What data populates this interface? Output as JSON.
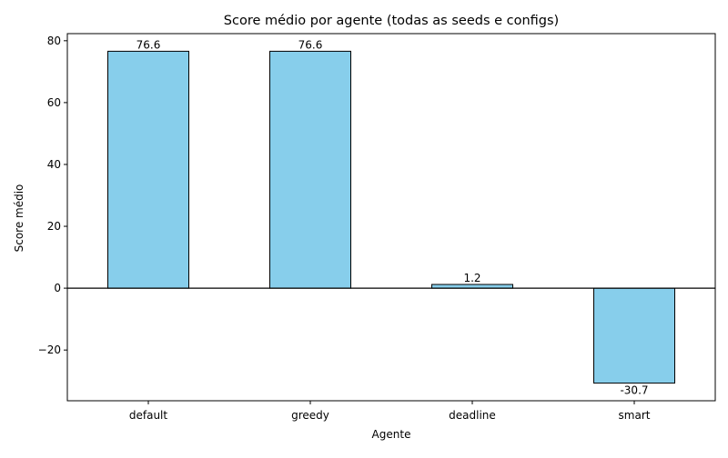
{
  "chart_data": {
    "type": "bar",
    "title": "Score médio por agente (todas as seeds e configs)",
    "xlabel": "Agente",
    "ylabel": "Score médio",
    "categories": [
      "default",
      "greedy",
      "deadline",
      "smart"
    ],
    "values": [
      76.6,
      76.6,
      1.2,
      -30.7
    ],
    "data_labels": [
      "76.6",
      "76.6",
      "1.2",
      "-30.7"
    ],
    "ylim": [
      -36.4,
      82.3
    ],
    "yticks": [
      -20,
      0,
      20,
      40,
      60,
      80
    ],
    "ytick_labels": [
      "−20",
      "0",
      "20",
      "40",
      "60",
      "80"
    ],
    "grid": false,
    "zero_line": true,
    "colors": {
      "bar_fill": "#87CEEB",
      "bar_edge": "#000000",
      "axis": "#000000"
    }
  }
}
